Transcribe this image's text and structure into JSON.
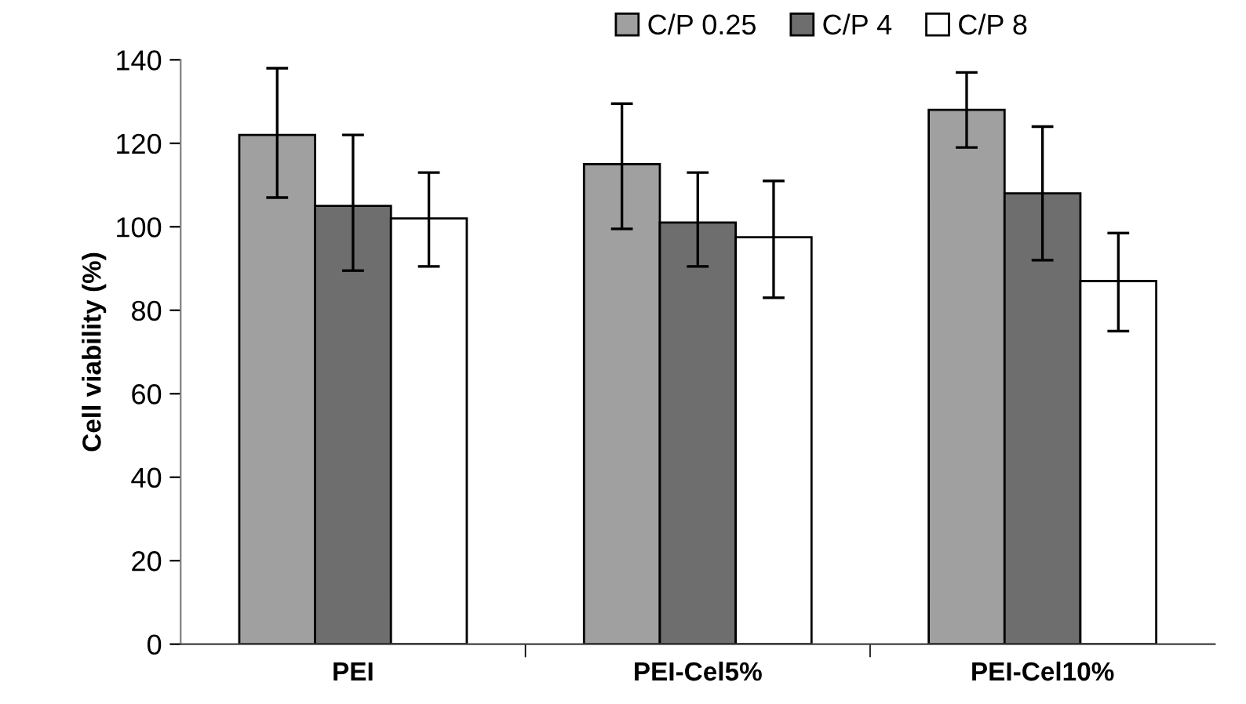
{
  "chart_data": {
    "type": "bar",
    "ylabel": "Cell viability (%)",
    "categories": [
      "PEI",
      "PEI-Cel5%",
      "PEI-Cel10%"
    ],
    "series": [
      {
        "name": "C/P 0.25",
        "color": "#a0a0a0",
        "values": [
          122,
          115,
          128
        ],
        "errors": [
          [
            107,
            138
          ],
          [
            99.5,
            129.5
          ],
          [
            119,
            137
          ]
        ]
      },
      {
        "name": "C/P 4",
        "color": "#6e6e6e",
        "values": [
          105,
          101,
          108
        ],
        "errors": [
          [
            89.5,
            122
          ],
          [
            90.5,
            113
          ],
          [
            92,
            124
          ]
        ]
      },
      {
        "name": "C/P 8",
        "color": "#ffffff",
        "values": [
          102,
          97.5,
          87
        ],
        "errors": [
          [
            90.5,
            113
          ],
          [
            83,
            111
          ],
          [
            75,
            98.5
          ]
        ]
      }
    ],
    "ylim": [
      0,
      140
    ],
    "yticks": [
      0,
      20,
      40,
      60,
      80,
      100,
      120,
      140
    ],
    "grid": false,
    "legend": "top"
  }
}
